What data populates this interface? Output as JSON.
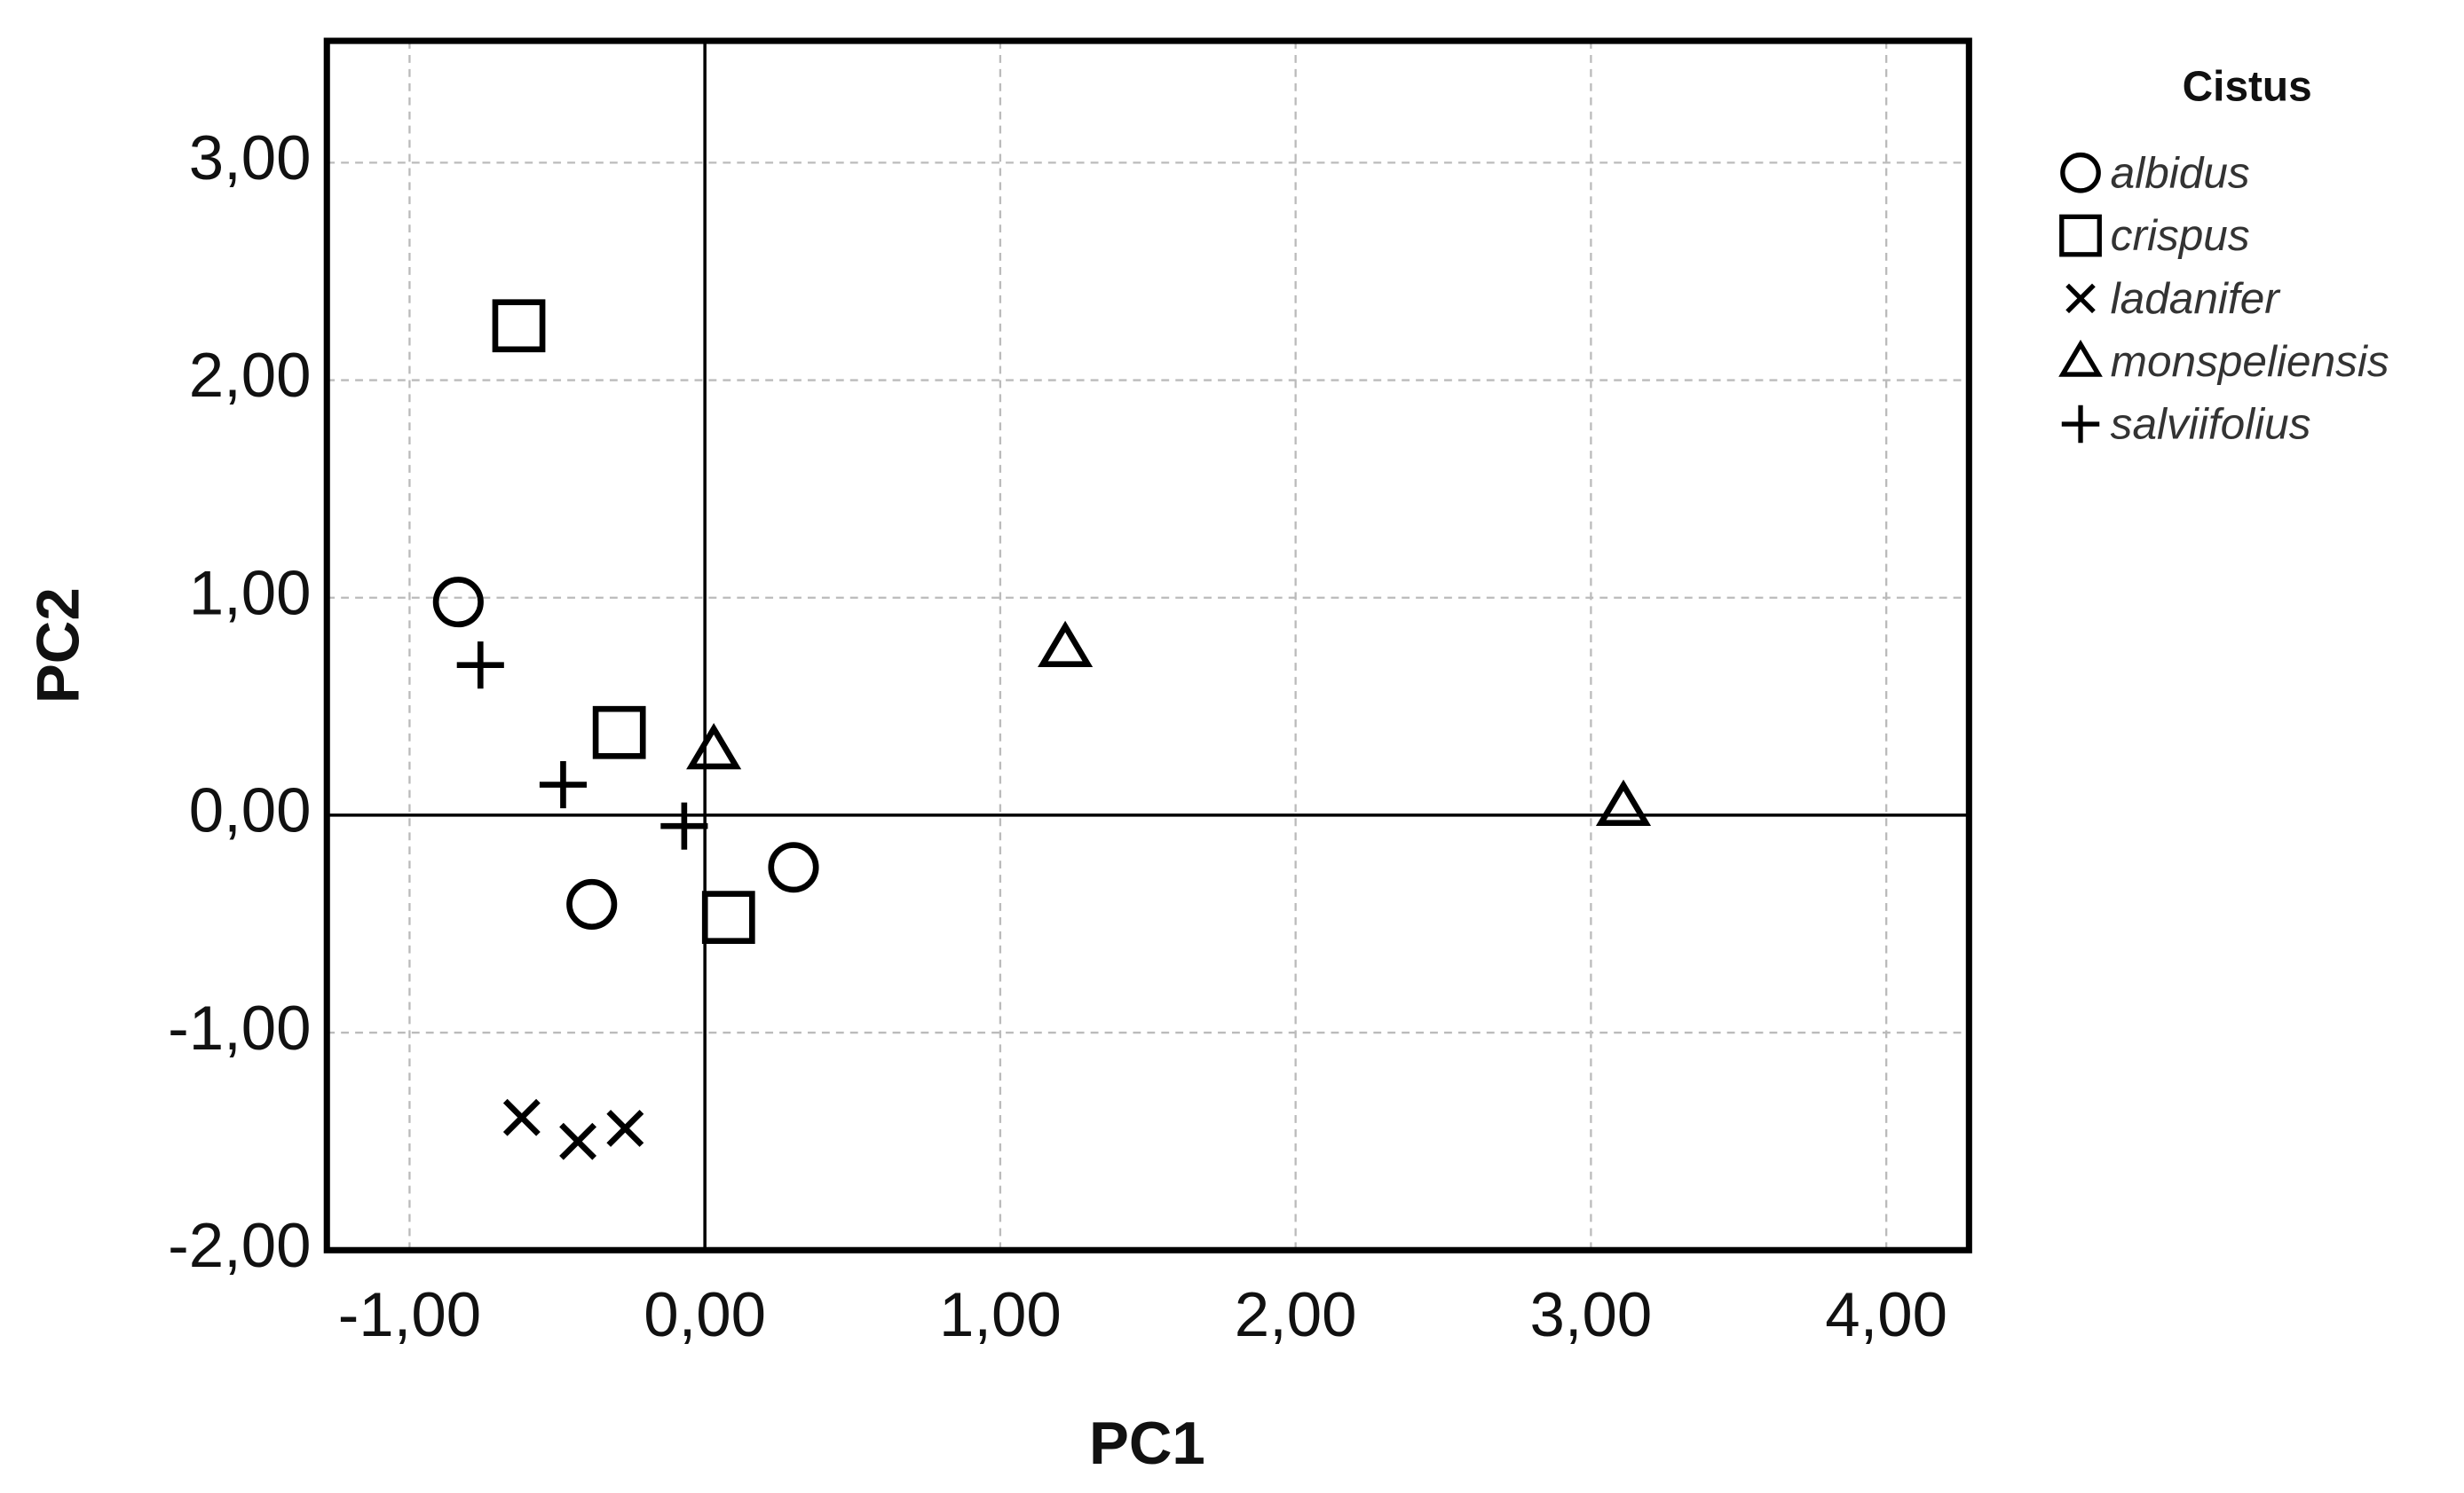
{
  "chart_data": {
    "type": "scatter",
    "xlabel": "PC1",
    "ylabel": "PC2",
    "legend_title": "Cistus",
    "legend": "right",
    "xlim": [
      -1.28,
      4.28
    ],
    "ylim": [
      -2,
      3.56
    ],
    "xticks": [
      {
        "value": -1,
        "label": "-1,00"
      },
      {
        "value": 0,
        "label": "0,00"
      },
      {
        "value": 1,
        "label": "1,00"
      },
      {
        "value": 2,
        "label": "2,00"
      },
      {
        "value": 3,
        "label": "3,00"
      },
      {
        "value": 4,
        "label": "4,00"
      }
    ],
    "yticks": [
      {
        "value": -2,
        "label": "-2,00"
      },
      {
        "value": -1,
        "label": "-1,00"
      },
      {
        "value": 0,
        "label": "0,00"
      },
      {
        "value": 1,
        "label": "1,00"
      },
      {
        "value": 2,
        "label": "2,00"
      },
      {
        "value": 3,
        "label": "3,00"
      }
    ],
    "grid": true,
    "series": [
      {
        "name": "albidus",
        "marker": "circle",
        "color": "#000000",
        "x": [
          -0.835,
          -0.383,
          0.3
        ],
        "y": [
          0.98,
          -0.41,
          -0.24
        ]
      },
      {
        "name": "crispus",
        "marker": "square",
        "color": "#000000",
        "x": [
          -0.63,
          -0.29,
          0.08
        ],
        "y": [
          2.25,
          0.38,
          -0.47
        ]
      },
      {
        "name": "ladanifer",
        "marker": "x",
        "color": "#000000",
        "x": [
          -0.62,
          -0.43,
          -0.27
        ],
        "y": [
          -1.39,
          -1.5,
          -1.44
        ]
      },
      {
        "name": "monspeliensis",
        "marker": "triangle",
        "color": "#000000",
        "x": [
          0.03,
          1.22,
          3.11
        ],
        "y": [
          0.3,
          0.77,
          0.04
        ]
      },
      {
        "name": "salviifolius",
        "marker": "plus",
        "color": "#000000",
        "x": [
          -0.76,
          -0.48,
          -0.07
        ],
        "y": [
          0.69,
          0.14,
          -0.05
        ]
      }
    ]
  }
}
